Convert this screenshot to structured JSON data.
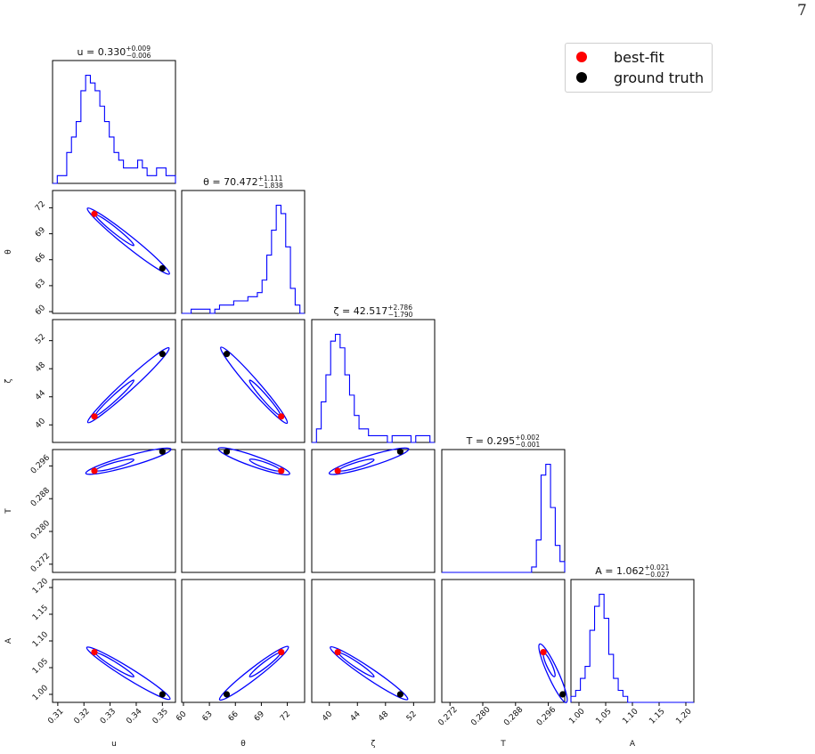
{
  "page_number": "7",
  "legend": {
    "items": [
      {
        "label": "best-fit",
        "color": "#ff0000"
      },
      {
        "label": "ground truth",
        "color": "#000000"
      }
    ]
  },
  "colors": {
    "contour": "#0000ff",
    "histogram": "#0000ff",
    "best_fit": "#ff0000",
    "ground_truth": "#000000"
  },
  "chart_data": {
    "type": "corner",
    "parameters": [
      {
        "name": "u",
        "symbol": "u",
        "title": {
          "prefix": "u = 0.330",
          "sup": "+0.009",
          "sub": "−0.006"
        },
        "range": [
          0.308,
          0.355
        ],
        "ticks": [
          0.31,
          0.32,
          0.33,
          0.34,
          0.35
        ],
        "tick_labels": [
          "0.31",
          "0.32",
          "0.33",
          "0.34",
          "0.35"
        ],
        "best_fit": 0.324,
        "ground_truth": 0.35,
        "hist": [
          0,
          1,
          1,
          4,
          6,
          8,
          12,
          14,
          13,
          12,
          10,
          8,
          6,
          4,
          3,
          2,
          2,
          2,
          3,
          2,
          1,
          1,
          2,
          2,
          1,
          1
        ]
      },
      {
        "name": "theta",
        "symbol": "θ",
        "title": {
          "prefix": "θ = 70.472",
          "sup": "+1.111",
          "sub": "−1.838"
        },
        "range": [
          59.8,
          74.0
        ],
        "ticks": [
          60,
          63,
          66,
          69,
          72
        ],
        "tick_labels": [
          "60",
          "63",
          "66",
          "69",
          "72"
        ],
        "best_fit": 71.3,
        "ground_truth": 65.0,
        "hist": [
          0,
          0,
          1,
          1,
          1,
          1,
          0,
          1,
          2,
          2,
          2,
          3,
          3,
          3,
          4,
          4,
          5,
          8,
          14,
          20,
          26,
          24,
          16,
          6,
          2,
          0
        ]
      },
      {
        "name": "zeta",
        "symbol": "ζ",
        "title": {
          "prefix": "ζ = 42.517",
          "sup": "+2.786",
          "sub": "−1.790"
        },
        "range": [
          37.5,
          55.0
        ],
        "ticks": [
          40,
          44,
          48,
          52
        ],
        "tick_labels": [
          "40",
          "44",
          "48",
          "52"
        ],
        "best_fit": 41.2,
        "ground_truth": 50.1,
        "hist": [
          0,
          2,
          6,
          10,
          15,
          16,
          14,
          10,
          7,
          4,
          2,
          2,
          1,
          1,
          1,
          1,
          0,
          1,
          1,
          1,
          1,
          0,
          1,
          1,
          1,
          0
        ]
      },
      {
        "name": "T",
        "symbol": "T",
        "title": {
          "prefix": "T = 0.295",
          "sup": "+0.002",
          "sub": "−0.001"
        },
        "range": [
          0.27,
          0.3
        ],
        "ticks": [
          0.272,
          0.28,
          0.288,
          0.296
        ],
        "tick_labels": [
          "0.272",
          "0.280",
          "0.288",
          "0.296"
        ],
        "best_fit": 0.2948,
        "ground_truth": 0.2995,
        "hist": [
          0,
          0,
          0,
          0,
          0,
          0,
          0,
          0,
          0,
          0,
          0,
          0,
          0,
          0,
          0,
          0,
          0,
          0,
          0,
          1,
          6,
          18,
          20,
          12,
          5,
          2
        ]
      },
      {
        "name": "A",
        "symbol": "A",
        "title": {
          "prefix": "A = 1.062",
          "sup": "+0.021",
          "sub": "−0.027"
        },
        "range": [
          0.985,
          1.215
        ],
        "ticks": [
          1.0,
          1.05,
          1.1,
          1.15,
          1.2
        ],
        "tick_labels": [
          "1.00",
          "1.05",
          "1.10",
          "1.15",
          "1.20"
        ],
        "best_fit": 1.079,
        "ground_truth": 1.0,
        "hist": [
          1,
          2,
          4,
          6,
          12,
          16,
          18,
          14,
          8,
          4,
          2,
          1,
          0,
          0,
          0,
          0,
          0,
          0,
          0,
          0,
          0,
          0,
          0,
          0,
          0,
          0
        ]
      }
    ],
    "xlabels": [
      "u",
      "θ",
      "ζ",
      "T",
      "A"
    ],
    "ylabels": [
      "θ",
      "ζ",
      "T",
      "A"
    ]
  }
}
